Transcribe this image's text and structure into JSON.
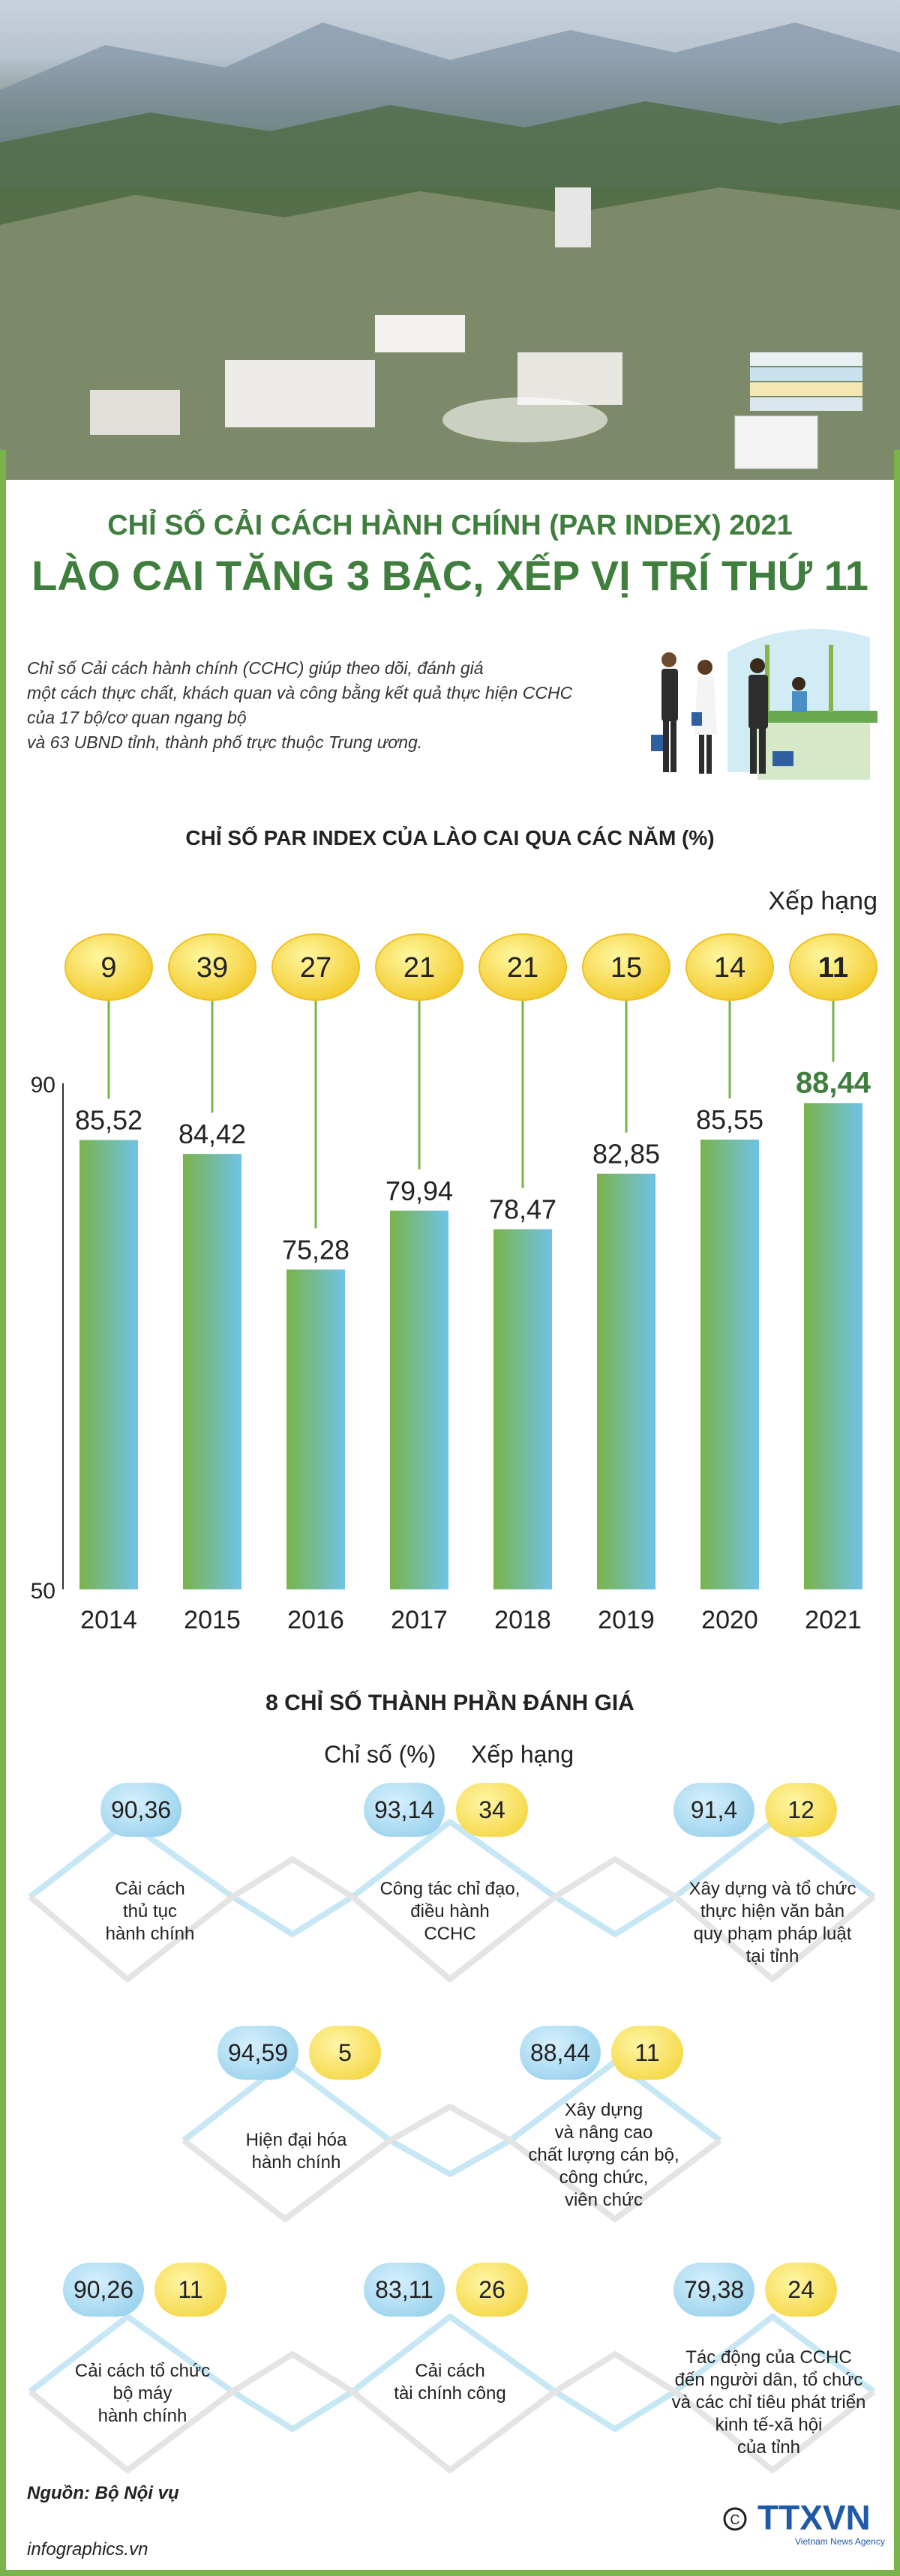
{
  "header": {
    "title_line1": "CHỈ SỐ CẢI CÁCH HÀNH CHÍNH (PAR INDEX) 2021",
    "title_line2": "LÀO CAI TĂNG 3 BẬC, XẾP VỊ TRÍ THỨ 11"
  },
  "intro": {
    "lines": [
      "Chỉ số Cải cách hành chính (CCHC) giúp theo dõi, đánh giá",
      "một cách thực chất, khách quan và công bằng kết quả thực hiện CCHC",
      "của 17 bộ/cơ quan ngang bộ",
      "và 63 UBND tỉnh, thành phố trực thuộc Trung ương."
    ]
  },
  "chart_data": {
    "type": "bar",
    "title": "CHỈ SỐ PAR INDEX CỦA LÀO CAI QUA CÁC NĂM (%)",
    "categories": [
      "2014",
      "2015",
      "2016",
      "2017",
      "2018",
      "2019",
      "2020",
      "2021"
    ],
    "values": [
      85.52,
      84.42,
      75.28,
      79.94,
      78.47,
      82.85,
      85.55,
      88.44
    ],
    "value_labels": [
      "85,52",
      "84,42",
      "75,28",
      "79,94",
      "78,47",
      "82,85",
      "85,55",
      "88,44"
    ],
    "ranks": [
      9,
      39,
      27,
      21,
      21,
      15,
      14,
      11
    ],
    "rank_label": "Xếp hạng",
    "ylim": [
      50,
      90
    ],
    "yticks": [
      "50",
      "90"
    ],
    "highlight_index": 7,
    "colors": {
      "bar_top": "#7ab34a",
      "bar_bottom": "#6fc2e8",
      "highlight_text": "#3f7e3c",
      "rank_fill": "#f6d52f"
    }
  },
  "components": {
    "title": "8 CHỈ SỐ THÀNH PHẦN ĐÁNH GIÁ",
    "legend_index": "Chỉ số (%)",
    "legend_rank": "Xếp hạng",
    "items": [
      {
        "index": "90,36",
        "rank": "",
        "label": [
          "Cải cách",
          "thủ tục",
          "hành chính"
        ]
      },
      {
        "index": "93,14",
        "rank": "34",
        "label": [
          "Công tác chỉ đạo,",
          "điều hành",
          "CCHC"
        ]
      },
      {
        "index": "91,4",
        "rank": "12",
        "label": [
          "Xây dựng và tổ chức",
          "thực hiện văn bản",
          "quy phạm pháp luật",
          "tại tỉnh"
        ]
      },
      {
        "index": "94,59",
        "rank": "5",
        "label": [
          "Hiện đại hóa",
          "hành chính"
        ]
      },
      {
        "index": "88,44",
        "rank": "11",
        "label": [
          "Xây dựng",
          "và nâng cao",
          "chất lượng cán bộ,",
          "công chức,",
          "viên chức"
        ]
      },
      {
        "index": "90,26",
        "rank": "11",
        "label": [
          "Cải cách tổ chức",
          "bộ máy",
          "hành chính"
        ]
      },
      {
        "index": "83,11",
        "rank": "26",
        "label": [
          "Cải cách",
          "tài chính công"
        ]
      },
      {
        "index": "79,38",
        "rank": "24",
        "label": [
          "Tác động của CCHC",
          "đến người dân, tổ chức",
          "và các chỉ tiêu phát triển",
          "kinh tế-xã hội",
          "của tỉnh"
        ]
      }
    ]
  },
  "footer": {
    "source": "Nguồn: Bộ Nội vụ",
    "site": "infographics.vn",
    "logo_text": "TTXVN",
    "logo_sub": "Vietnam News Agency"
  }
}
